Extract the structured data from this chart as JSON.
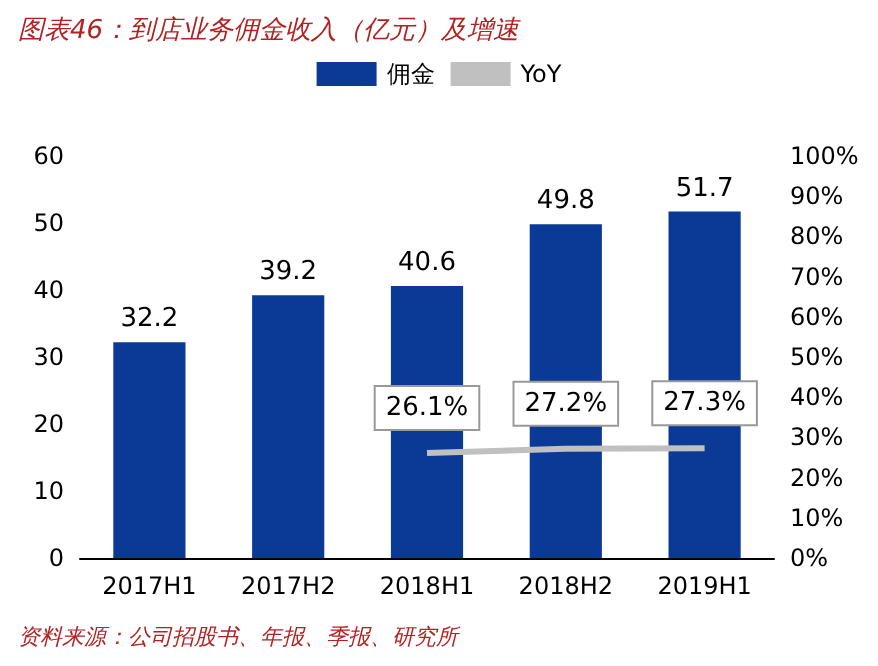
{
  "chart_data": {
    "type": "bar",
    "title": "图表46：到店业务佣金收入（亿元）及增速",
    "categories": [
      "2017H1",
      "2017H2",
      "2018H1",
      "2018H2",
      "2019H1"
    ],
    "series": [
      {
        "name": "佣金",
        "color": "#0b3a96",
        "values": [
          32.2,
          39.2,
          40.6,
          49.8,
          51.7
        ],
        "value_labels": [
          "32.2",
          "39.2",
          "40.6",
          "49.8",
          "51.7"
        ]
      },
      {
        "name": "YoY",
        "type": "line",
        "axis": "y2",
        "color": "#c0c0c0",
        "values": [
          null,
          null,
          26.1,
          27.2,
          27.3
        ],
        "value_labels": [
          null,
          null,
          "26.1%",
          "27.2%",
          "27.3%"
        ]
      }
    ],
    "ylim": [
      0,
      60
    ],
    "yticks": [
      0,
      10,
      20,
      30,
      40,
      50,
      60
    ],
    "y2lim": [
      0,
      100
    ],
    "y2ticks": [
      {
        "value": 0,
        "label": "0%"
      },
      {
        "value": 10,
        "label": "10%"
      },
      {
        "value": 20,
        "label": "20%"
      },
      {
        "value": 30,
        "label": "30%"
      },
      {
        "value": 40,
        "label": "40%"
      },
      {
        "value": 50,
        "label": "50%"
      },
      {
        "value": 60,
        "label": "60%"
      },
      {
        "value": 70,
        "label": "70%"
      },
      {
        "value": 80,
        "label": "80%"
      },
      {
        "value": 90,
        "label": "90%"
      },
      {
        "value": 100,
        "label": "100%"
      }
    ],
    "grid": false,
    "legend": "top",
    "marker": "none",
    "annotations": [
      "资料来源：公司招股书、年报、季报、研究所"
    ]
  }
}
